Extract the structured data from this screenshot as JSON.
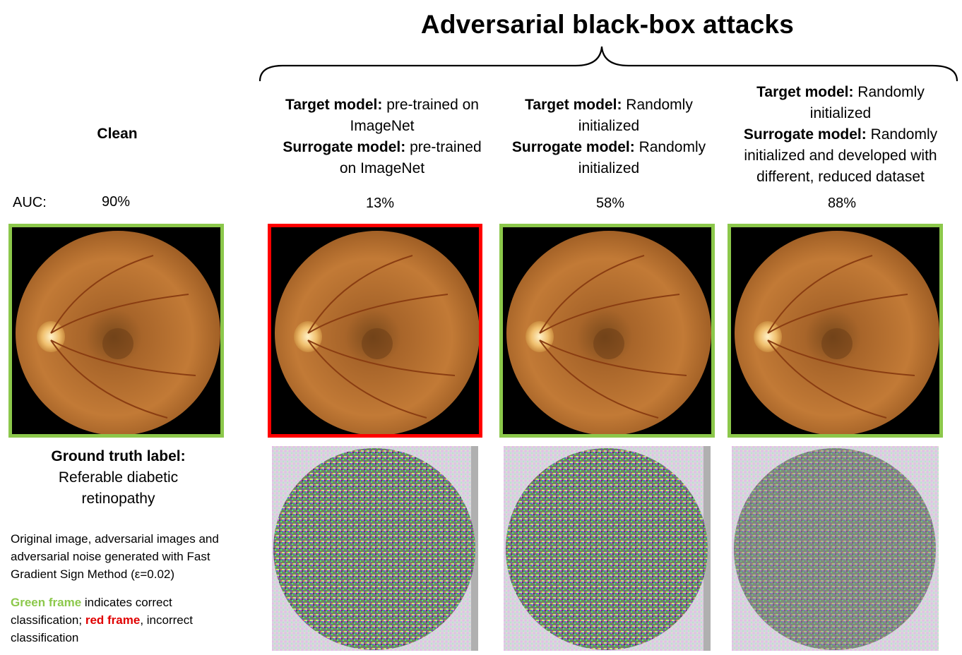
{
  "title": "Adversarial black-box attacks",
  "clean": {
    "label": "Clean",
    "auc": "90%"
  },
  "auc_label": "AUC:",
  "columns": [
    {
      "target_label": "Target model:",
      "target_value": "pre-trained on ImageNet",
      "surrogate_label": "Surrogate model:",
      "surrogate_value": "pre-trained on ImageNet",
      "auc": "13%",
      "frame_color": "#ff0000"
    },
    {
      "target_label": "Target model:",
      "target_value": "Randomly initialized",
      "surrogate_label": "Surrogate model:",
      "surrogate_value": "Randomly initialized",
      "auc": "58%",
      "frame_color": "#8cc84b"
    },
    {
      "target_label": "Target model:",
      "target_value": "Randomly initialized",
      "surrogate_label": "Surrogate model:",
      "surrogate_value": "Randomly initialized and developed with different, reduced dataset",
      "auc": "88%",
      "frame_color": "#8cc84b"
    }
  ],
  "ground_truth": {
    "label": "Ground truth label:",
    "value": "Referable diabetic retinopathy"
  },
  "note": "Original image, adversarial images and adversarial noise generated with Fast Gradient Sign Method (ε=0.02)",
  "legend": {
    "green": "Green frame",
    "green_rest": " indicates correct classification; ",
    "red": "red frame",
    "red_rest": ", incorrect classification"
  },
  "colors": {
    "correct": "#8cc84b",
    "incorrect": "#ff0000"
  }
}
